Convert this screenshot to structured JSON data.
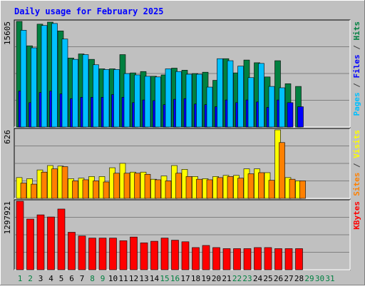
{
  "chart_data": [
    {
      "type": "bar",
      "title": "Daily usage for February 2025",
      "categories": [
        "1",
        "2",
        "3",
        "4",
        "5",
        "6",
        "7",
        "8",
        "9",
        "10",
        "11",
        "12",
        "13",
        "14",
        "15",
        "16",
        "17",
        "18",
        "19",
        "20",
        "21",
        "22",
        "23",
        "24",
        "25",
        "26",
        "27",
        "28",
        "29",
        "30",
        "31"
      ],
      "category_colors": {
        "weekday": "#000000",
        "weekend": "#008040",
        "no_data": "#008040"
      },
      "y_max_label": "15605",
      "right_label_parts": [
        {
          "text": "Pages",
          "color": "#00c0ff"
        },
        {
          "text": " / ",
          "color": "#404040"
        },
        {
          "text": "Files",
          "color": "#0000ff"
        },
        {
          "text": " / ",
          "color": "#404040"
        },
        {
          "text": "Hits",
          "color": "#008040"
        }
      ],
      "ylim": [
        0,
        15605
      ],
      "series": [
        {
          "name": "Hits",
          "color": "#008040",
          "values": [
            15605,
            12000,
            15200,
            15500,
            14200,
            10200,
            10800,
            10000,
            8600,
            8600,
            10700,
            8000,
            8200,
            7500,
            7700,
            8700,
            8400,
            7900,
            8100,
            6900,
            10100,
            8000,
            9900,
            9500,
            7400,
            9800,
            6400,
            6000,
            0,
            0,
            0
          ]
        },
        {
          "name": "Files",
          "color": "#0000ff",
          "values": [
            5300,
            3600,
            5100,
            5300,
            4900,
            4200,
            4400,
            4400,
            4400,
            4800,
            4400,
            3600,
            4000,
            3900,
            3300,
            4100,
            4200,
            3400,
            3300,
            3000,
            4000,
            3600,
            4000,
            3700,
            2900,
            4000,
            3600,
            3000,
            0,
            0,
            0
          ]
        },
        {
          "name": "Pages",
          "color": "#00c0ff",
          "values": [
            14300,
            11700,
            15000,
            15300,
            13000,
            10000,
            10700,
            9200,
            8500,
            8500,
            7900,
            7700,
            7500,
            7400,
            8600,
            8200,
            7800,
            7800,
            5900,
            10100,
            9800,
            9000,
            7300,
            9400,
            6000,
            5800,
            0,
            0,
            0,
            0,
            0
          ]
        }
      ]
    },
    {
      "type": "bar",
      "categories": [
        "1",
        "2",
        "3",
        "4",
        "5",
        "6",
        "7",
        "8",
        "9",
        "10",
        "11",
        "12",
        "13",
        "14",
        "15",
        "16",
        "17",
        "18",
        "19",
        "20",
        "21",
        "22",
        "23",
        "24",
        "25",
        "26",
        "27",
        "28",
        "29",
        "30",
        "31"
      ],
      "y_max_label": "626",
      "right_label_parts": [
        {
          "text": "Sites",
          "color": "#ff8000"
        },
        {
          "text": " / ",
          "color": "#404040"
        },
        {
          "text": "Visits",
          "color": "#ffff00"
        }
      ],
      "ylim": [
        0,
        626
      ],
      "series": [
        {
          "name": "Visits",
          "color": "#ffff00",
          "values": [
            190,
            180,
            260,
            300,
            295,
            180,
            185,
            200,
            200,
            280,
            320,
            240,
            240,
            175,
            205,
            300,
            265,
            200,
            180,
            200,
            210,
            210,
            270,
            270,
            235,
            626,
            190,
            160,
            0,
            0,
            0
          ]
        },
        {
          "name": "Sites",
          "color": "#ff8000",
          "values": [
            140,
            130,
            240,
            270,
            290,
            160,
            170,
            160,
            150,
            230,
            230,
            230,
            220,
            170,
            160,
            230,
            200,
            175,
            170,
            190,
            200,
            185,
            225,
            235,
            165,
            510,
            175,
            160,
            0,
            0,
            0
          ]
        }
      ]
    },
    {
      "type": "bar",
      "categories": [
        "1",
        "2",
        "3",
        "4",
        "5",
        "6",
        "7",
        "8",
        "9",
        "10",
        "11",
        "12",
        "13",
        "14",
        "15",
        "16",
        "17",
        "18",
        "19",
        "20",
        "21",
        "22",
        "23",
        "24",
        "25",
        "26",
        "27",
        "28",
        "29",
        "30",
        "31"
      ],
      "y_max_label": "1297921",
      "right_label_parts": [
        {
          "text": "KBytes",
          "color": "#ff0000"
        }
      ],
      "ylim": [
        0,
        1297921
      ],
      "series": [
        {
          "name": "KBytes",
          "color": "#ff0000",
          "values": [
            1297921,
            960000,
            1040000,
            1000000,
            1150000,
            710000,
            640000,
            600000,
            600000,
            600000,
            550000,
            620000,
            510000,
            540000,
            600000,
            560000,
            530000,
            420000,
            460000,
            420000,
            400000,
            400000,
            400000,
            420000,
            420000,
            400000,
            400000,
            400000,
            0,
            0,
            0
          ]
        }
      ]
    }
  ]
}
